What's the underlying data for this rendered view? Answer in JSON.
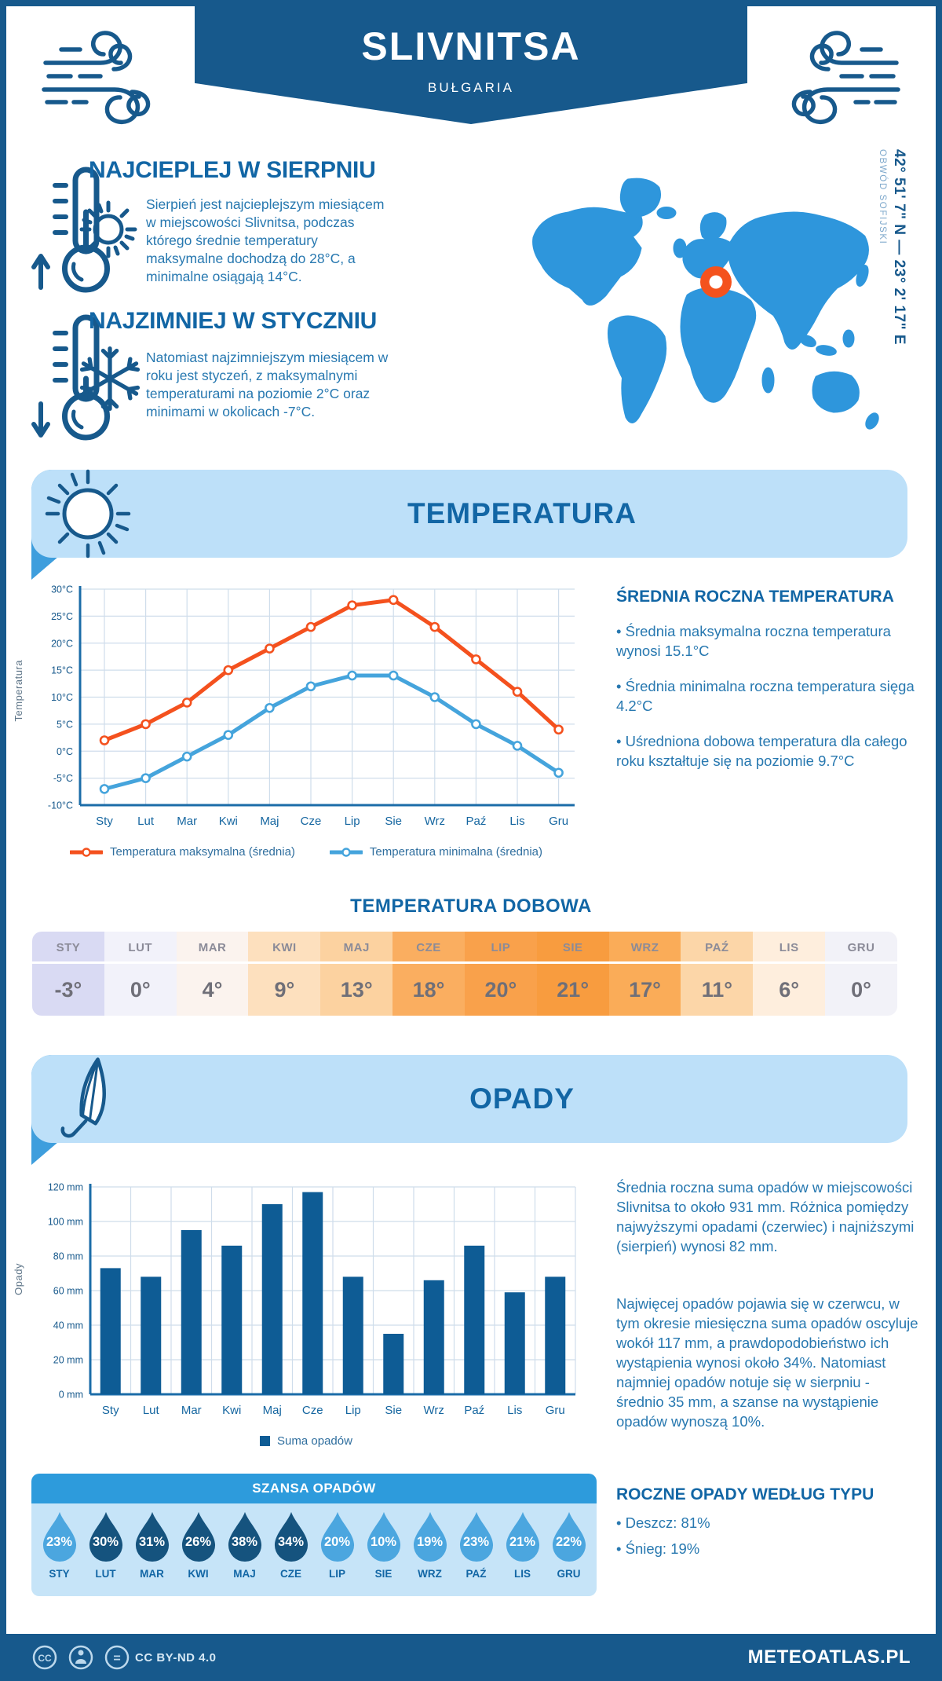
{
  "page": {
    "title": "SLIVNITSA",
    "subtitle": "BUŁGARIA",
    "coordinates": "42° 51' 7\" N — 23° 2' 17\" E",
    "region": "OBWÓD SOFIJSKI"
  },
  "highlights": {
    "warm": {
      "title": "NAJCIEPLEJ W SIERPNIU",
      "text": "Sierpień jest najcieplejszym miesiącem w miejscowości Slivnitsa, podczas którego średnie temperatury maksymalne dochodzą do 28°C, a minimalne osiągają 14°C."
    },
    "cold": {
      "title": "NAJZIMNIEJ W STYCZNIU",
      "text": "Natomiast najzimniejszym miesiącem w roku jest styczeń, z maksymalnymi temperaturami na poziomie 2°C oraz minimami w okolicach -7°C."
    }
  },
  "temperature_section": {
    "banner": "TEMPERATURA",
    "annual_title": "ŚREDNIA ROCZNA TEMPERATURA",
    "annual_bullets": [
      "• Średnia maksymalna roczna temperatura wynosi 15.1°C",
      "• Średnia minimalna roczna temperatura sięga 4.2°C",
      "• Uśredniona dobowa temperatura dla całego roku kształtuje się na poziomie 9.7°C"
    ],
    "daily_title": "TEMPERATURA DOBOWA",
    "daily": {
      "months": [
        "STY",
        "LUT",
        "MAR",
        "KWI",
        "MAJ",
        "CZE",
        "LIP",
        "SIE",
        "WRZ",
        "PAŹ",
        "LIS",
        "GRU"
      ],
      "values": [
        "-3°",
        "0°",
        "4°",
        "9°",
        "13°",
        "18°",
        "20°",
        "21°",
        "17°",
        "11°",
        "6°",
        "0°"
      ],
      "colors": [
        "#D9DAF3",
        "#F2F2FA",
        "#FBF3EE",
        "#FDE0BE",
        "#FCD2A0",
        "#FAAE60",
        "#F9A14B",
        "#F89C3F",
        "#FAAC58",
        "#FCD6A8",
        "#FEEEDD",
        "#F2F2F8"
      ]
    }
  },
  "precipitation_section": {
    "banner": "OPADY",
    "paragraphs": [
      "Średnia roczna suma opadów w miejscowości Slivnitsa to około 931 mm. Różnica pomiędzy najwyższymi opadami (czerwiec) i najniższymi (sierpień) wynosi 82 mm.",
      "Najwięcej opadów pojawia się w czerwcu, w tym okresie miesięczna suma opadów oscyluje wokół 117 mm, a prawdopodobieństwo ich wystąpienia wynosi około 34%. Natomiast najmniej opadów notuje się w sierpniu - średnio 35 mm, a szanse na wystąpienie opadów wynoszą 10%."
    ],
    "type_title": "ROCZNE OPADY WEDŁUG TYPU",
    "type_bullets": [
      "• Deszcz: 81%",
      "• Śnieg: 19%"
    ],
    "chance_title": "SZANSA OPADÓW",
    "chance": {
      "months": [
        "STY",
        "LUT",
        "MAR",
        "KWI",
        "MAJ",
        "CZE",
        "LIP",
        "SIE",
        "WRZ",
        "PAŹ",
        "LIS",
        "GRU"
      ],
      "values": [
        "23%",
        "30%",
        "31%",
        "26%",
        "38%",
        "34%",
        "20%",
        "10%",
        "19%",
        "23%",
        "21%",
        "22%"
      ],
      "fills": [
        "#4BA6DF",
        "#15537E",
        "#15537E",
        "#15537E",
        "#15537E",
        "#15537E",
        "#4BA6DF",
        "#4BA6DF",
        "#4BA6DF",
        "#4BA6DF",
        "#4BA6DF",
        "#4BA6DF"
      ]
    }
  },
  "footer": {
    "license": "CC BY-ND 4.0",
    "site": "METEOATLAS.PL"
  },
  "colors": {
    "navy": "#17598C",
    "heading_blue": "#1266A5",
    "body_blue": "#2778B0",
    "banner_bg": "#BDE0F9",
    "banner_tab": "#3E9EDD",
    "map_blue": "#2E96DC",
    "marker_orange": "#F4521D",
    "grid": "#CFDDEB",
    "axis": "#1B6CA8"
  },
  "chart_data": [
    {
      "type": "line",
      "categories": [
        "Sty",
        "Lut",
        "Mar",
        "Kwi",
        "Maj",
        "Cze",
        "Lip",
        "Sie",
        "Wrz",
        "Paź",
        "Lis",
        "Gru"
      ],
      "series": [
        {
          "name": "Temperatura maksymalna (średnia)",
          "color": "#F4511E",
          "values": [
            2,
            5,
            9,
            15,
            19,
            23,
            27,
            28,
            23,
            17,
            11,
            4
          ]
        },
        {
          "name": "Temperatura minimalna (średnia)",
          "color": "#45A4DC",
          "values": [
            -7,
            -5,
            -1,
            3,
            8,
            12,
            14,
            14,
            10,
            5,
            1,
            -4
          ]
        }
      ],
      "title": "",
      "xlabel": "",
      "ylabel": "Temperatura",
      "ylim": [
        -10,
        30
      ],
      "ytick_step": 5,
      "ytick_suffix": "°C",
      "grid": true,
      "legend_position": "bottom"
    },
    {
      "type": "bar",
      "categories": [
        "Sty",
        "Lut",
        "Mar",
        "Kwi",
        "Maj",
        "Cze",
        "Lip",
        "Sie",
        "Wrz",
        "Paź",
        "Lis",
        "Gru"
      ],
      "series": [
        {
          "name": "Suma opadów",
          "color": "#0E5C95",
          "values": [
            73,
            68,
            95,
            86,
            110,
            117,
            68,
            35,
            66,
            86,
            59,
            68
          ]
        }
      ],
      "title": "",
      "xlabel": "",
      "ylabel": "Opady",
      "ylim": [
        0,
        120
      ],
      "ytick_step": 20,
      "ytick_suffix": " mm",
      "grid": true,
      "legend_position": "bottom"
    }
  ]
}
